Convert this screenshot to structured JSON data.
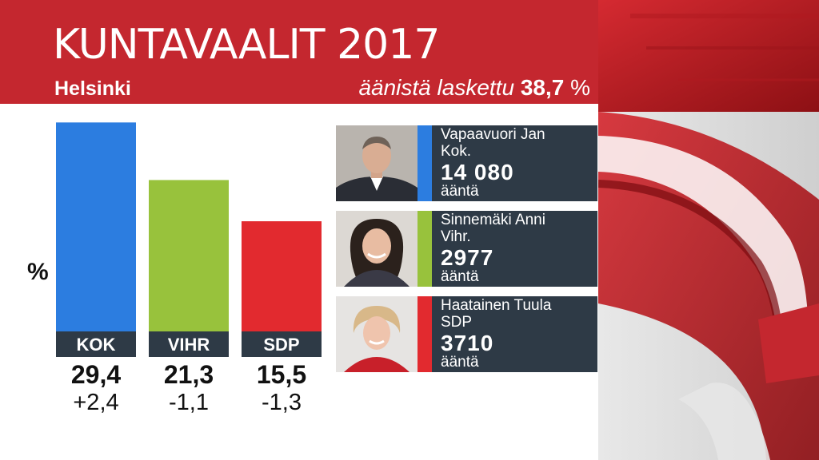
{
  "header": {
    "title": "KUNTAVAALIT 2017",
    "region": "Helsinki",
    "counted_label": "äänistä laskettu",
    "counted_value": "38,7",
    "counted_unit": "%"
  },
  "chart_data": {
    "type": "bar",
    "categories": [
      "KOK",
      "VIHR",
      "SDP"
    ],
    "values": [
      29.4,
      21.3,
      15.5
    ],
    "value_labels": [
      "29,4",
      "21,3",
      "15,5"
    ],
    "changes": [
      "+2,4",
      "-1,1",
      "-1,3"
    ],
    "unit_symbol": "%",
    "colors": [
      "#2c7de0",
      "#98c23c",
      "#e22a2f"
    ]
  },
  "candidates": [
    {
      "name": "Vapaavuori Jan",
      "party": "Kok.",
      "votes": "14 080",
      "unit": "ääntä",
      "color": "#2c7de0"
    },
    {
      "name": "Sinnemäki Anni",
      "party": "Vihr.",
      "votes": "2977",
      "unit": "ääntä",
      "color": "#98c23c"
    },
    {
      "name": "Haatainen Tuula",
      "party": "SDP",
      "votes": "3710",
      "unit": "ääntä",
      "color": "#e22a2f"
    }
  ],
  "colors": {
    "header_bg": "#c4272f",
    "label_bg": "#2e3a46",
    "text_dark": "#111111"
  }
}
